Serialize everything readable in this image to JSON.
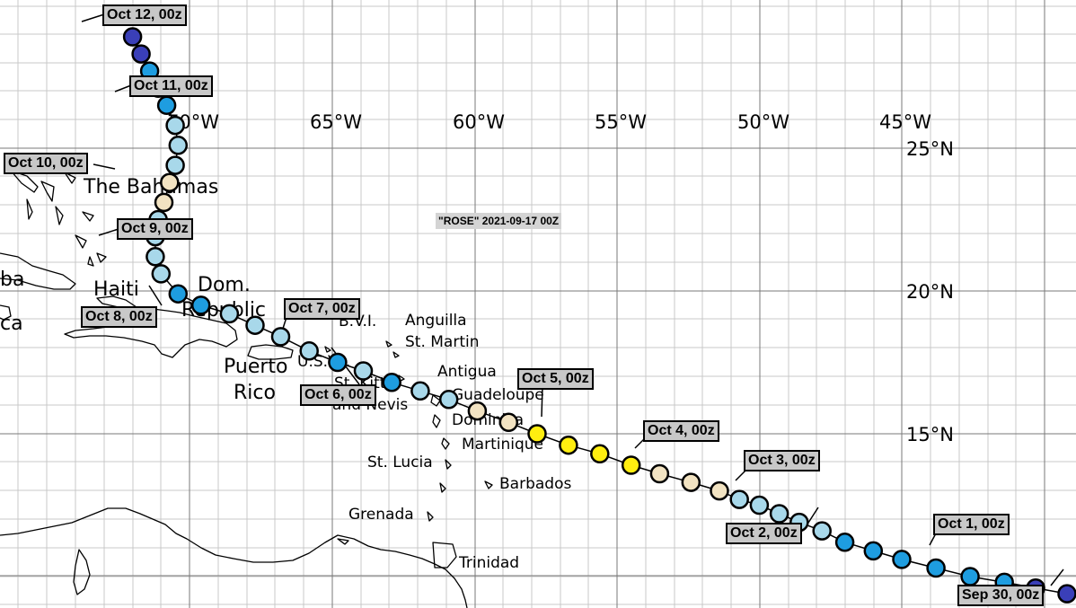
{
  "title": "\"ROSE\" 2021-09-17 00Z",
  "longitude_labels": [
    "70°W",
    "65°W",
    "60°W",
    "55°W",
    "50°W",
    "45°W"
  ],
  "latitude_labels": [
    "25°N",
    "20°N",
    "15°N"
  ],
  "place_labels": {
    "bahamas": "The Bahamas",
    "cuba": "ba",
    "jamaica": "ca",
    "haiti": "Haiti",
    "dom1": "Dom.",
    "dom2": "Republic",
    "pr1": "Puerto",
    "pr2": "Rico",
    "bvi": "B.V.I.",
    "usvi": "U.S.V.I.",
    "anguilla": "Anguilla",
    "stmartin": "St. Martin",
    "antigua": "Antigua",
    "stkitts1": "St. Kitts",
    "stkitts2": "and Nevis",
    "guadeloupe": "Guadeloupe",
    "dominica": "Dominica",
    "martinique": "Martinique",
    "stlucia": "St. Lucia",
    "barbados": "Barbados",
    "grenada": "Grenada",
    "trinidad": "Trinidad"
  },
  "time_tags": {
    "oct12": "Oct 12, 00z",
    "oct11": "Oct 11, 00z",
    "oct10": "Oct 10, 00z",
    "oct9": "Oct 9, 00z",
    "oct8": "Oct 8, 00z",
    "oct7": "Oct 7, 00z",
    "oct6": "Oct 6, 00z",
    "oct5": "Oct 5, 00z",
    "oct4": "Oct 4, 00z",
    "oct3": "Oct 3, 00z",
    "oct2": "Oct 2, 00z",
    "oct1": "Oct 1, 00z",
    "sep30": "Sep 30, 00z"
  },
  "colors": {
    "light_blue": "#a8d8ea",
    "medium_blue": "#1e9de0",
    "dark_blue": "#3a3fb8",
    "tan": "#f2e3c2",
    "yellow": "#ffee10",
    "grid": "#c8c8c8"
  },
  "track_points": [
    {
      "lon": -72.0,
      "lat": 28.9,
      "color": "dark_blue"
    },
    {
      "lon": -71.7,
      "lat": 28.3,
      "color": "dark_blue"
    },
    {
      "lon": -71.4,
      "lat": 27.7,
      "color": "medium_blue"
    },
    {
      "lon": -71.1,
      "lat": 27.1,
      "color": "medium_blue"
    },
    {
      "lon": -70.8,
      "lat": 26.5,
      "color": "medium_blue"
    },
    {
      "lon": -70.5,
      "lat": 25.8,
      "color": "light_blue"
    },
    {
      "lon": -70.4,
      "lat": 25.1,
      "color": "light_blue"
    },
    {
      "lon": -70.5,
      "lat": 24.4,
      "color": "light_blue"
    },
    {
      "lon": -70.7,
      "lat": 23.8,
      "color": "tan"
    },
    {
      "lon": -70.9,
      "lat": 23.1,
      "color": "tan"
    },
    {
      "lon": -71.1,
      "lat": 22.5,
      "color": "light_blue"
    },
    {
      "lon": -71.2,
      "lat": 21.9,
      "color": "light_blue"
    },
    {
      "lon": -71.2,
      "lat": 21.2,
      "color": "light_blue"
    },
    {
      "lon": -71.0,
      "lat": 20.6,
      "color": "light_blue"
    },
    {
      "lon": -70.4,
      "lat": 19.9,
      "color": "medium_blue"
    },
    {
      "lon": -69.6,
      "lat": 19.5,
      "color": "medium_blue"
    },
    {
      "lon": -68.6,
      "lat": 19.2,
      "color": "light_blue"
    },
    {
      "lon": -67.7,
      "lat": 18.8,
      "color": "light_blue"
    },
    {
      "lon": -66.8,
      "lat": 18.4,
      "color": "light_blue"
    },
    {
      "lon": -65.8,
      "lat": 17.9,
      "color": "light_blue"
    },
    {
      "lon": -64.8,
      "lat": 17.5,
      "color": "medium_blue"
    },
    {
      "lon": -63.9,
      "lat": 17.2,
      "color": "light_blue"
    },
    {
      "lon": -62.9,
      "lat": 16.8,
      "color": "medium_blue"
    },
    {
      "lon": -61.9,
      "lat": 16.5,
      "color": "light_blue"
    },
    {
      "lon": -60.9,
      "lat": 16.2,
      "color": "light_blue"
    },
    {
      "lon": -59.9,
      "lat": 15.8,
      "color": "tan"
    },
    {
      "lon": -58.8,
      "lat": 15.4,
      "color": "tan"
    },
    {
      "lon": -57.8,
      "lat": 15.0,
      "color": "yellow"
    },
    {
      "lon": -56.7,
      "lat": 14.6,
      "color": "yellow"
    },
    {
      "lon": -55.6,
      "lat": 14.3,
      "color": "yellow"
    },
    {
      "lon": -54.5,
      "lat": 13.9,
      "color": "yellow"
    },
    {
      "lon": -53.5,
      "lat": 13.6,
      "color": "tan"
    },
    {
      "lon": -52.4,
      "lat": 13.3,
      "color": "tan"
    },
    {
      "lon": -51.4,
      "lat": 13.0,
      "color": "tan"
    },
    {
      "lon": -50.7,
      "lat": 12.7,
      "color": "light_blue"
    },
    {
      "lon": -50.0,
      "lat": 12.5,
      "color": "light_blue"
    },
    {
      "lon": -49.3,
      "lat": 12.2,
      "color": "light_blue"
    },
    {
      "lon": -48.6,
      "lat": 11.9,
      "color": "light_blue"
    },
    {
      "lon": -47.8,
      "lat": 11.6,
      "color": "light_blue"
    },
    {
      "lon": -47.0,
      "lat": 11.2,
      "color": "medium_blue"
    },
    {
      "lon": -46.0,
      "lat": 10.9,
      "color": "medium_blue"
    },
    {
      "lon": -45.0,
      "lat": 10.6,
      "color": "medium_blue"
    },
    {
      "lon": -43.8,
      "lat": 10.3,
      "color": "medium_blue"
    },
    {
      "lon": -42.6,
      "lat": 10.0,
      "color": "medium_blue"
    },
    {
      "lon": -41.4,
      "lat": 9.8,
      "color": "medium_blue"
    },
    {
      "lon": -40.3,
      "lat": 9.6,
      "color": "dark_blue"
    },
    {
      "lon": -39.2,
      "lat": 9.4,
      "color": "dark_blue"
    }
  ]
}
